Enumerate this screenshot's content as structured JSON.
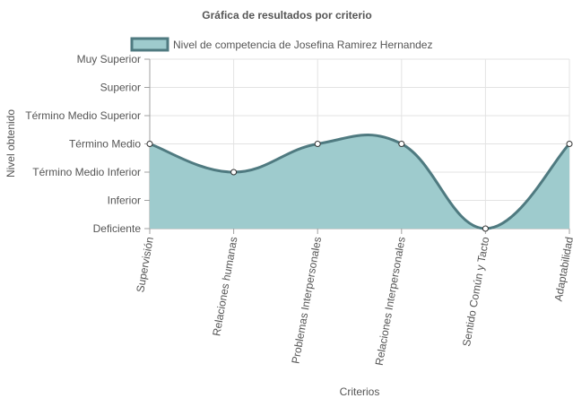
{
  "chart_data": {
    "type": "area",
    "title": "Gráfica de resultados por criterio",
    "xlabel": "Criterios",
    "ylabel": "Nivel obtenido",
    "categories": [
      "Supervisión",
      "Relaciones humanas",
      "Problemas Interpersonales",
      "Relaciones Interpersonales",
      "Sentido Común y Tacto",
      "Adaptabilidad"
    ],
    "y_levels": [
      "Deficiente",
      "Inferior",
      "Término Medio Inferior",
      "Término Medio",
      "Término Medio Superior",
      "Superior",
      "Muy Superior"
    ],
    "series": [
      {
        "name": "Nivel de competencia de Josefina Ramirez Hernandez",
        "values": [
          3,
          2,
          3,
          3,
          0,
          3
        ]
      }
    ],
    "ylim": [
      0,
      6
    ],
    "grid": true,
    "legend_position": "top",
    "colors": {
      "fill": "#9ECBCD",
      "line": "#4F7A80",
      "grid": "#E3E3E3",
      "axis": "#A0A0A0",
      "text": "#555555"
    }
  }
}
